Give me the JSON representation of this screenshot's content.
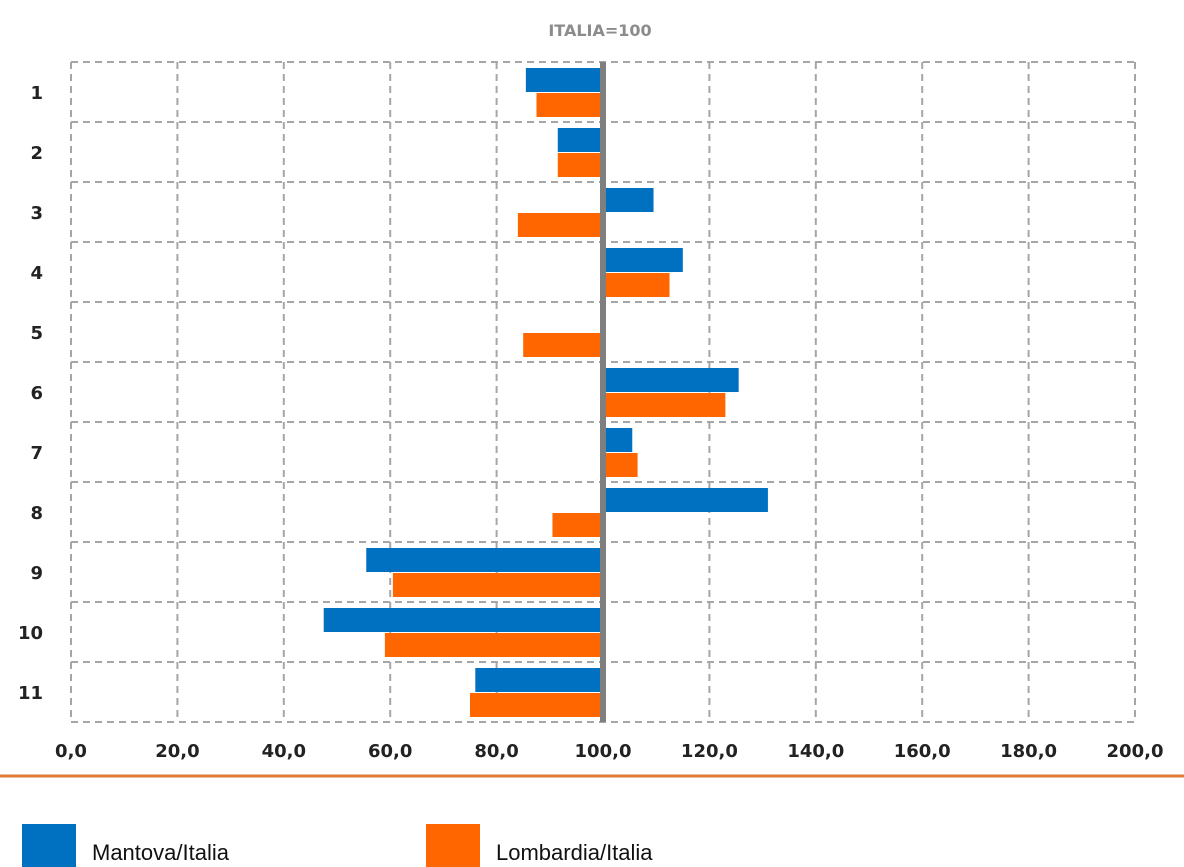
{
  "chart_data": {
    "type": "bar",
    "orientation": "horizontal",
    "title": "ITALIA=100",
    "categories": [
      "1",
      "2",
      "3",
      "4",
      "5",
      "6",
      "7",
      "8",
      "9",
      "10",
      "11"
    ],
    "series": [
      {
        "name": "Mantova/Italia",
        "color": "#0070c0",
        "values": [
          85.5,
          91.5,
          109.5,
          115,
          100,
          125.5,
          105.5,
          131,
          55.5,
          47.5,
          76
        ]
      },
      {
        "name": "Lombardia/Italia",
        "color": "#ff6600",
        "values": [
          87.5,
          91.5,
          84,
          112.5,
          85,
          123,
          106.5,
          90.5,
          60.5,
          59,
          75
        ]
      }
    ],
    "reference_value": 100,
    "xlim": [
      0,
      200
    ],
    "x_ticks": [
      "0,0",
      "20,0",
      "40,0",
      "60,0",
      "80,0",
      "100,0",
      "120,0",
      "140,0",
      "160,0",
      "180,0",
      "200,0"
    ],
    "grid": true,
    "grid_style": "dashed",
    "legend_position": "bottom"
  }
}
